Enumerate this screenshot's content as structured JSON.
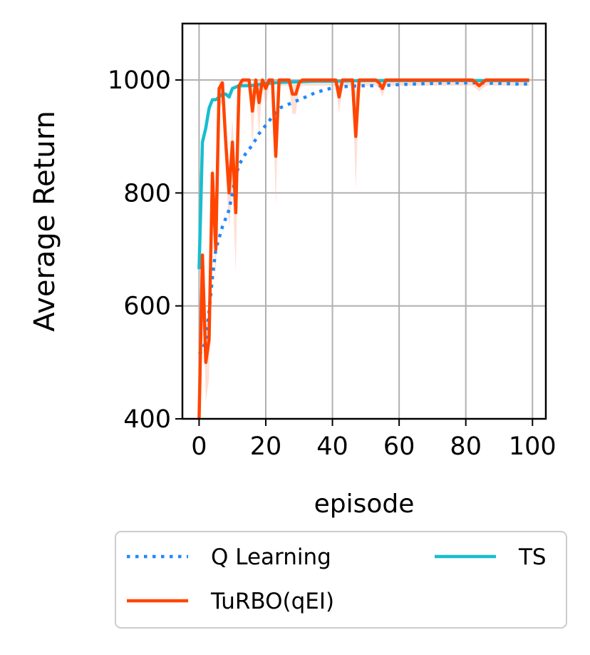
{
  "chart_data": {
    "type": "line",
    "xlabel": "episode",
    "ylabel": "Average Return",
    "xlim": [
      -5,
      104
    ],
    "ylim": [
      400,
      1100
    ],
    "xticks": [
      0,
      20,
      40,
      60,
      80,
      100
    ],
    "yticks": [
      400,
      600,
      800,
      1000
    ],
    "grid": true,
    "legend_position": "below",
    "series": [
      {
        "name": "Q Learning",
        "style": "dotted",
        "color": "#1e88ff",
        "x": [
          0,
          1,
          2,
          3,
          4,
          5,
          6,
          7,
          8,
          9,
          10,
          11,
          12,
          14,
          16,
          18,
          20,
          22,
          24,
          26,
          28,
          30,
          32,
          35,
          38,
          40,
          45,
          50,
          55,
          60,
          65,
          70,
          75,
          80,
          85,
          90,
          95,
          99
        ],
        "y": [
          515,
          520,
          540,
          590,
          650,
          700,
          720,
          740,
          755,
          770,
          800,
          830,
          850,
          870,
          885,
          905,
          920,
          935,
          950,
          955,
          960,
          965,
          970,
          978,
          983,
          986,
          989,
          990,
          990,
          992,
          993,
          994,
          995,
          995,
          995,
          994,
          993,
          993
        ]
      },
      {
        "name": "TuRBO(qEI)",
        "style": "solid",
        "color": "#ff4500",
        "band_color": "#ffb199",
        "x": [
          0,
          1,
          2,
          3,
          4,
          5,
          6,
          7,
          8,
          9,
          10,
          11,
          12,
          13,
          14,
          15,
          16,
          17,
          18,
          19,
          20,
          21,
          22,
          23,
          24,
          25,
          26,
          27,
          28,
          29,
          30,
          31,
          32,
          35,
          38,
          40,
          41,
          42,
          43,
          45,
          46,
          47,
          48,
          50,
          53,
          54,
          55,
          56,
          60,
          65,
          70,
          75,
          80,
          82,
          84,
          86,
          90,
          95,
          99
        ],
        "y": [
          400,
          690,
          500,
          540,
          835,
          700,
          985,
          995,
          890,
          800,
          890,
          765,
          990,
          1000,
          1000,
          1000,
          945,
          1000,
          960,
          1000,
          985,
          1000,
          1000,
          865,
          1000,
          1000,
          1000,
          1000,
          975,
          975,
          995,
          1000,
          1000,
          1000,
          1000,
          1000,
          1000,
          970,
          1000,
          1000,
          1000,
          900,
          1000,
          1000,
          1000,
          995,
          985,
          1000,
          1000,
          1000,
          1000,
          1000,
          1000,
          1000,
          990,
          1000,
          1000,
          1000,
          1000
        ],
        "y_lower": [
          400,
          650,
          430,
          470,
          780,
          650,
          950,
          960,
          840,
          740,
          810,
          660,
          960,
          990,
          990,
          990,
          880,
          990,
          900,
          990,
          950,
          990,
          990,
          775,
          990,
          990,
          990,
          990,
          940,
          940,
          985,
          990,
          990,
          990,
          990,
          990,
          990,
          940,
          990,
          990,
          990,
          805,
          990,
          990,
          990,
          985,
          970,
          990,
          990,
          990,
          990,
          990,
          990,
          990,
          980,
          990,
          990,
          990,
          990
        ],
        "y_upper": [
          400,
          700,
          560,
          600,
          850,
          740,
          1000,
          1000,
          920,
          850,
          930,
          820,
          1000,
          1000,
          1000,
          1000,
          990,
          1000,
          1000,
          1000,
          1000,
          1000,
          1000,
          940,
          1000,
          1000,
          1000,
          1000,
          1000,
          1000,
          1000,
          1000,
          1000,
          1000,
          1000,
          1000,
          1000,
          1000,
          1000,
          1000,
          1000,
          980,
          1000,
          1000,
          1000,
          1000,
          1000,
          1000,
          1000,
          1000,
          1000,
          1000,
          1000,
          1000,
          1000,
          1000,
          1000,
          1000,
          1000
        ]
      },
      {
        "name": "TS",
        "style": "solid",
        "color": "#17becf",
        "x": [
          0,
          1,
          2,
          3,
          4,
          5,
          6,
          7,
          8,
          9,
          10,
          12,
          15,
          18,
          20,
          25,
          30,
          35,
          40,
          50,
          60,
          70,
          80,
          90,
          99
        ],
        "y": [
          665,
          890,
          915,
          950,
          965,
          965,
          970,
          975,
          975,
          970,
          985,
          990,
          990,
          992,
          994,
          996,
          997,
          998,
          998,
          999,
          999,
          999,
          999,
          999,
          999
        ]
      }
    ]
  }
}
